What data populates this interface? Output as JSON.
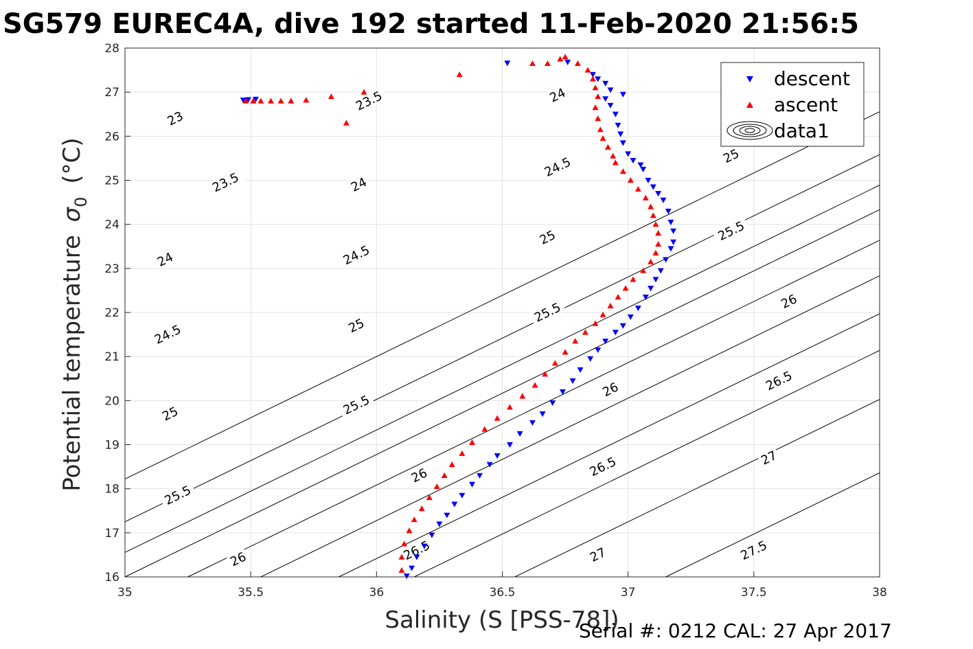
{
  "chart_data": {
    "type": "scatter",
    "title": "SG579 EUREC4A, dive 192 started 11-Feb-2020 21:56:5",
    "xlabel": "Salinity (S [PSS-78])",
    "ylabel_main": "Potential temperature",
    "ylabel_symbol": "σ",
    "ylabel_subscript": "0",
    "ylabel_unit": "(°C)",
    "footer": "Serial #: 0212  CAL: 27 Apr 2017",
    "xlim": [
      35,
      38
    ],
    "ylim": [
      16,
      28
    ],
    "xticks": [
      35,
      35.5,
      36,
      36.5,
      37,
      37.5,
      38
    ],
    "xtick_labels": [
      "35",
      "35.5",
      "36",
      "36.5",
      "37",
      "37.5",
      "38"
    ],
    "yticks": [
      16,
      17,
      18,
      19,
      20,
      21,
      22,
      23,
      24,
      25,
      26,
      27,
      28
    ],
    "grid": true,
    "legend_position": "top-right",
    "legend": [
      {
        "name": "descent",
        "color": "#0000ff",
        "marker": "triangle-down"
      },
      {
        "name": "ascent",
        "color": "#ff0000",
        "marker": "triangle-up"
      },
      {
        "name": "data1",
        "color": "#000000",
        "marker": "contour"
      }
    ],
    "contour_levels": [
      {
        "level": "23",
        "x_at_ymin": 34.2,
        "labels": [
          [
            35.2,
            26.4
          ]
        ]
      },
      {
        "level": "23.5",
        "x_at_ymin": 34.55,
        "labels": [
          [
            35.4,
            24.95
          ],
          [
            35.97,
            26.8
          ]
        ]
      },
      {
        "level": "24",
        "x_at_ymin": 34.8,
        "labels": [
          [
            35.16,
            23.2
          ],
          [
            35.93,
            24.9
          ],
          [
            36.72,
            26.93
          ]
        ]
      },
      {
        "level": "24.5",
        "x_at_ymin": 35.0,
        "labels": [
          [
            35.17,
            21.5
          ],
          [
            35.92,
            23.3
          ],
          [
            36.72,
            25.3
          ]
        ]
      },
      {
        "level": "25",
        "x_at_ymin": 35.25,
        "labels": [
          [
            35.18,
            19.7
          ],
          [
            35.92,
            21.7
          ],
          [
            36.68,
            23.7
          ],
          [
            37.41,
            25.55
          ]
        ]
      },
      {
        "level": "25.5",
        "x_at_ymin": 35.54,
        "labels": [
          [
            35.21,
            17.85
          ],
          [
            35.92,
            19.9
          ],
          [
            36.68,
            22.0
          ],
          [
            37.41,
            23.85
          ]
        ]
      },
      {
        "level": "26",
        "x_at_ymin": 35.85,
        "labels": [
          [
            35.45,
            16.4
          ],
          [
            36.17,
            18.3
          ],
          [
            36.93,
            20.25
          ],
          [
            37.64,
            22.25
          ]
        ]
      },
      {
        "level": "26.5",
        "x_at_ymin": 36.15,
        "labels": [
          [
            36.16,
            16.6
          ],
          [
            36.9,
            18.5
          ],
          [
            37.6,
            20.45
          ]
        ]
      },
      {
        "level": "27",
        "x_at_ymin": 36.55,
        "labels": [
          [
            36.88,
            16.5
          ],
          [
            37.56,
            18.7
          ]
        ]
      },
      {
        "level": "27.5",
        "x_at_ymin": 37.15,
        "labels": [
          [
            37.5,
            16.6
          ]
        ]
      }
    ],
    "series": [
      {
        "name": "descent",
        "color": "#0000ff",
        "marker": "triangle-down",
        "points": [
          [
            35.47,
            26.82
          ],
          [
            35.49,
            26.83
          ],
          [
            35.52,
            26.84
          ],
          [
            36.52,
            27.66
          ],
          [
            36.76,
            27.68
          ],
          [
            36.86,
            27.4
          ],
          [
            36.88,
            27.3
          ],
          [
            36.91,
            27.2
          ],
          [
            36.93,
            27.05
          ],
          [
            36.98,
            26.95
          ],
          [
            36.91,
            26.85
          ],
          [
            36.93,
            26.7
          ],
          [
            36.95,
            26.5
          ],
          [
            36.96,
            26.25
          ],
          [
            36.97,
            26.05
          ],
          [
            36.98,
            25.85
          ],
          [
            37.0,
            25.6
          ],
          [
            37.02,
            25.45
          ],
          [
            37.05,
            25.35
          ],
          [
            37.06,
            25.25
          ],
          [
            37.08,
            25.0
          ],
          [
            37.1,
            24.85
          ],
          [
            37.12,
            24.7
          ],
          [
            37.14,
            24.55
          ],
          [
            37.16,
            24.3
          ],
          [
            37.17,
            24.05
          ],
          [
            37.18,
            23.85
          ],
          [
            37.18,
            23.6
          ],
          [
            37.17,
            23.45
          ],
          [
            37.15,
            23.2
          ],
          [
            37.13,
            22.95
          ],
          [
            37.11,
            22.75
          ],
          [
            37.09,
            22.55
          ],
          [
            37.07,
            22.35
          ],
          [
            37.04,
            22.1
          ],
          [
            37.01,
            21.9
          ],
          [
            36.98,
            21.7
          ],
          [
            36.95,
            21.55
          ],
          [
            36.91,
            21.35
          ],
          [
            36.88,
            21.15
          ],
          [
            36.85,
            20.95
          ],
          [
            36.81,
            20.7
          ],
          [
            36.78,
            20.45
          ],
          [
            36.74,
            20.2
          ],
          [
            36.7,
            19.95
          ],
          [
            36.66,
            19.7
          ],
          [
            36.62,
            19.5
          ],
          [
            36.57,
            19.25
          ],
          [
            36.53,
            19.0
          ],
          [
            36.48,
            18.75
          ],
          [
            36.45,
            18.55
          ],
          [
            36.41,
            18.3
          ],
          [
            36.38,
            18.1
          ],
          [
            36.34,
            17.85
          ],
          [
            36.31,
            17.65
          ],
          [
            36.28,
            17.4
          ],
          [
            36.25,
            17.2
          ],
          [
            36.22,
            16.95
          ],
          [
            36.19,
            16.7
          ],
          [
            36.16,
            16.45
          ],
          [
            36.14,
            16.2
          ],
          [
            36.12,
            16.02
          ]
        ]
      },
      {
        "name": "ascent",
        "color": "#ff0000",
        "marker": "triangle-up",
        "points": [
          [
            35.48,
            26.8
          ],
          [
            35.51,
            26.8
          ],
          [
            35.54,
            26.8
          ],
          [
            35.58,
            26.8
          ],
          [
            35.62,
            26.8
          ],
          [
            35.66,
            26.8
          ],
          [
            35.72,
            26.82
          ],
          [
            35.82,
            26.9
          ],
          [
            35.88,
            26.3
          ],
          [
            35.95,
            27.0
          ],
          [
            36.33,
            27.4
          ],
          [
            36.62,
            27.65
          ],
          [
            36.68,
            27.65
          ],
          [
            36.73,
            27.75
          ],
          [
            36.75,
            27.8
          ],
          [
            36.8,
            27.65
          ],
          [
            36.84,
            27.5
          ],
          [
            36.86,
            27.3
          ],
          [
            36.87,
            27.1
          ],
          [
            36.88,
            26.9
          ],
          [
            36.87,
            26.65
          ],
          [
            36.88,
            26.4
          ],
          [
            36.89,
            26.15
          ],
          [
            36.9,
            25.95
          ],
          [
            36.92,
            25.75
          ],
          [
            36.94,
            25.55
          ],
          [
            36.95,
            25.4
          ],
          [
            36.98,
            25.2
          ],
          [
            37.01,
            25.0
          ],
          [
            37.04,
            24.8
          ],
          [
            37.07,
            24.6
          ],
          [
            37.09,
            24.4
          ],
          [
            37.1,
            24.2
          ],
          [
            37.11,
            24.0
          ],
          [
            37.12,
            23.8
          ],
          [
            37.12,
            23.55
          ],
          [
            37.11,
            23.35
          ],
          [
            37.09,
            23.15
          ],
          [
            37.06,
            22.95
          ],
          [
            37.02,
            22.75
          ],
          [
            36.99,
            22.55
          ],
          [
            36.96,
            22.35
          ],
          [
            36.93,
            22.15
          ],
          [
            36.9,
            21.95
          ],
          [
            36.87,
            21.75
          ],
          [
            36.83,
            21.55
          ],
          [
            36.79,
            21.35
          ],
          [
            36.75,
            21.1
          ],
          [
            36.71,
            20.85
          ],
          [
            36.67,
            20.6
          ],
          [
            36.63,
            20.35
          ],
          [
            36.58,
            20.1
          ],
          [
            36.53,
            19.85
          ],
          [
            36.48,
            19.6
          ],
          [
            36.43,
            19.35
          ],
          [
            36.38,
            19.05
          ],
          [
            36.34,
            18.8
          ],
          [
            36.3,
            18.55
          ],
          [
            36.27,
            18.3
          ],
          [
            36.24,
            18.05
          ],
          [
            36.21,
            17.8
          ],
          [
            36.18,
            17.55
          ],
          [
            36.15,
            17.3
          ],
          [
            36.13,
            17.05
          ],
          [
            36.11,
            16.75
          ],
          [
            36.1,
            16.45
          ],
          [
            36.1,
            16.15
          ]
        ]
      }
    ]
  }
}
